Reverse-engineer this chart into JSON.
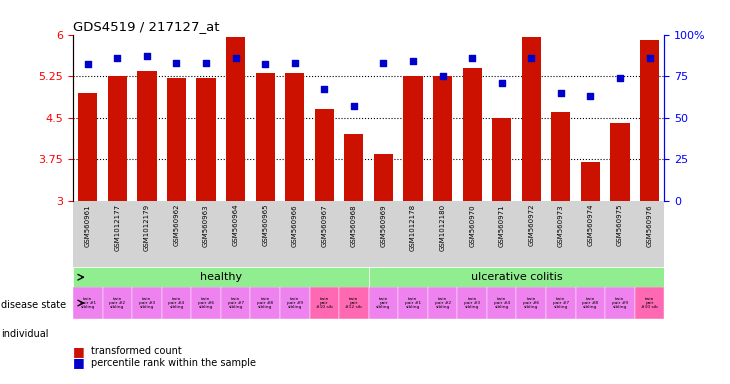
{
  "title": "GDS4519 / 217127_at",
  "samples": [
    "GSM560961",
    "GSM1012177",
    "GSM1012179",
    "GSM560962",
    "GSM560963",
    "GSM560964",
    "GSM560965",
    "GSM560966",
    "GSM560967",
    "GSM560968",
    "GSM560969",
    "GSM1012178",
    "GSM1012180",
    "GSM560970",
    "GSM560971",
    "GSM560972",
    "GSM560973",
    "GSM560974",
    "GSM560975",
    "GSM560976"
  ],
  "bar_values": [
    4.95,
    5.25,
    5.35,
    5.22,
    5.22,
    5.95,
    5.3,
    5.3,
    4.65,
    4.2,
    3.85,
    5.25,
    5.25,
    5.4,
    4.5,
    5.95,
    4.6,
    3.7,
    4.4,
    5.9
  ],
  "dot_values": [
    82,
    86,
    87,
    83,
    83,
    86,
    82,
    83,
    67,
    57,
    83,
    84,
    75,
    86,
    71,
    86,
    65,
    63,
    74,
    86
  ],
  "ylim_left": [
    3.0,
    6.0
  ],
  "ylim_right": [
    0,
    100
  ],
  "yticks_left": [
    3.0,
    3.75,
    4.5,
    5.25,
    6.0
  ],
  "yticks_right": [
    0,
    25,
    50,
    75,
    100
  ],
  "bar_color": "#cc1100",
  "dot_color": "#0000cc",
  "dot_size": 18,
  "hline_values": [
    3.75,
    4.5,
    5.25
  ],
  "healthy_color": "#90ee90",
  "uc_color": "#90ee90",
  "indiv_color_normal": "#ee82ee",
  "indiv_color_pink": "#ff69b4",
  "indiv_pink_indices": [
    8,
    9,
    19
  ],
  "n_samples": 20,
  "bar_width": 0.65,
  "individual_labels": [
    "twin\npair #1\nsibling",
    "twin\npair #2\nsibling",
    "twin\npair #3\nsibling",
    "twin\npair #4\nsibling",
    "twin\npair #6\nsibling",
    "twin\npair #7\nsibling",
    "twin\npair #8\nsibling",
    "twin\npair #9\nsibling",
    "twin\npair\n#10 sib",
    "twin\npair\n#12 sib",
    "twin\npair\nsibling",
    "twin\npair #1\nsibling",
    "twin\npair #2\nsibling",
    "twin\npair #3\nsibling",
    "twin\npair #4\nsibling",
    "twin\npair #6\nsibling",
    "twin\npair #7\nsibling",
    "twin\npair #8\nsibling",
    "twin\npair #9\nsibling",
    "twin\npair\n#10 sib"
  ]
}
